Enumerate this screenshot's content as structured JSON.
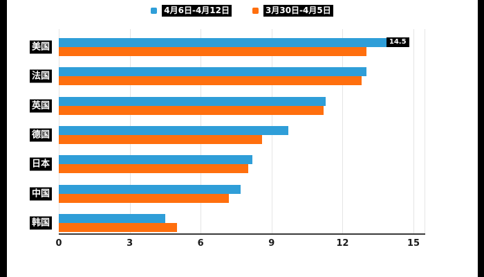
{
  "legend": {
    "items": [
      {
        "label": "4月6日-4月12日"
      },
      {
        "label": "3月30日-4月5日"
      }
    ]
  },
  "colors": {
    "series_blue": "#2f9ed8",
    "series_orange": "#ff6f0e",
    "grid": "#e4e4e4",
    "axis": "#3a3a3a",
    "label_bg": "#000000",
    "label_fg": "#ffffff"
  },
  "chart_data": {
    "type": "bar",
    "orientation": "horizontal",
    "title": "",
    "xlabel": "",
    "ylabel": "",
    "categories": [
      "美国",
      "法国",
      "英国",
      "德国",
      "日本",
      "中国",
      "韩国"
    ],
    "series": [
      {
        "name": "4月6日-4月12日",
        "color": "#2f9ed8",
        "values": [
          14.5,
          13.0,
          11.3,
          9.7,
          8.2,
          7.7,
          4.5
        ]
      },
      {
        "name": "3月30日-4月5日",
        "color": "#ff6f0e",
        "values": [
          13.0,
          12.8,
          11.2,
          8.6,
          8.0,
          7.2,
          5.0
        ]
      }
    ],
    "x_ticks": [
      0,
      3,
      6,
      9,
      12,
      15
    ],
    "xlim": [
      0,
      15.5
    ],
    "grid": true,
    "legend_position": "top",
    "annotations": [
      {
        "category": "美国",
        "series_index": 0,
        "text": "14.5"
      }
    ]
  }
}
